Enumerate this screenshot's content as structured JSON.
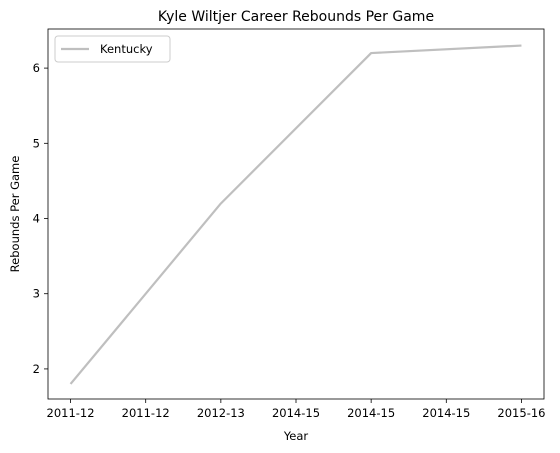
{
  "chart_data": {
    "type": "line",
    "title": "Kyle Wiltjer Career Rebounds Per Game",
    "xlabel": "Year",
    "ylabel": "Rebounds Per Game",
    "x_tick_labels": [
      "2011-12",
      "2011-12",
      "2012-13",
      "2014-15",
      "2014-15",
      "2014-15",
      "2015-16"
    ],
    "x": [
      0,
      2,
      4,
      6
    ],
    "xlim": [
      -0.3,
      6.3
    ],
    "ylim": [
      1.6,
      6.52
    ],
    "y_ticks": [
      2,
      3,
      4,
      5,
      6
    ],
    "series": [
      {
        "name": "Kentucky",
        "x": [
          0,
          2,
          4,
          6
        ],
        "values": [
          1.8,
          4.2,
          6.2,
          6.3
        ],
        "color": "#bfbfbf"
      }
    ],
    "legend": {
      "position": "top-left"
    },
    "grid": false
  }
}
